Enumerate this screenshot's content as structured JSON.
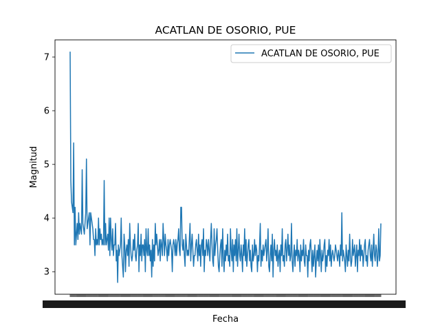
{
  "chart_data": {
    "type": "line",
    "title": "ACATLAN DE OSORIO, PUE",
    "xlabel": "Fecha",
    "ylabel": "Magnitud",
    "ylim": [
      2.58,
      7.32
    ],
    "yticks": [
      3,
      4,
      5,
      6,
      7
    ],
    "grid": false,
    "legend": "top-right",
    "series": [
      {
        "name": "ACATLAN DE OSORIO, PUE",
        "color": "#1f77b4",
        "values": [
          7.1,
          4.7,
          4.3,
          4.2,
          4.1,
          5.4,
          3.5,
          4.2,
          3.5,
          3.7,
          3.9,
          3.6,
          4.1,
          3.7,
          3.9,
          3.8,
          3.7,
          4.9,
          3.9,
          3.8,
          3.7,
          3.9,
          4.1,
          5.1,
          3.8,
          3.9,
          4.0,
          4.1,
          3.5,
          4.1,
          4.0,
          3.9,
          3.8,
          3.6,
          3.6,
          3.3,
          3.8,
          3.5,
          3.6,
          3.5,
          4.0,
          3.5,
          3.8,
          3.6,
          3.7,
          3.5,
          3.6,
          3.5,
          4.7,
          3.5,
          3.9,
          3.5,
          3.6,
          3.7,
          3.4,
          4.0,
          3.3,
          4.0,
          3.6,
          3.4,
          3.8,
          3.3,
          3.5,
          3.5,
          3.9,
          3.2,
          3.4,
          2.8,
          3.5,
          3.3,
          3.4,
          3.5,
          4.0,
          3.3,
          3.1,
          2.9,
          3.7,
          3.5,
          3.0,
          3.4,
          3.5,
          3.3,
          3.6,
          3.1,
          3.9,
          3.5,
          3.3,
          3.2,
          3.3,
          3.6,
          3.4,
          3.7,
          3.3,
          3.2,
          3.4,
          3.5,
          3.9,
          3.0,
          3.5,
          3.3,
          3.7,
          3.2,
          3.5,
          3.5,
          3.3,
          3.6,
          3.0,
          3.8,
          3.4,
          3.3,
          3.8,
          3.3,
          3.5,
          3.2,
          3.4,
          2.9,
          3.6,
          3.1,
          3.5,
          3.2,
          3.9,
          3.5,
          3.7,
          3.5,
          3.3,
          3.4,
          3.6,
          3.2,
          3.6,
          3.5,
          3.3,
          3.9,
          3.6,
          3.3,
          3.7,
          3.5,
          3.4,
          3.2,
          3.6,
          3.3,
          3.5,
          3.6,
          3.5,
          3.4,
          3.0,
          3.5,
          3.6,
          3.5,
          3.3,
          3.6,
          3.3,
          3.5,
          3.6,
          3.8,
          3.4,
          3.3,
          4.2,
          4.2,
          3.5,
          3.4,
          3.6,
          3.3,
          3.1,
          3.7,
          3.5,
          3.3,
          3.4,
          3.3,
          3.6,
          3.9,
          3.2,
          3.5,
          3.7,
          3.4,
          3.1,
          3.3,
          3.3,
          3.5,
          3.6,
          3.4,
          3.2,
          3.7,
          3.3,
          3.5,
          3.1,
          3.5,
          3.6,
          3.3,
          3.8,
          3.0,
          3.4,
          3.3,
          3.6,
          3.5,
          3.3,
          3.6,
          3.4,
          3.2,
          3.6,
          3.9,
          3.5,
          3.2,
          3.1,
          3.8,
          3.3,
          3.5,
          3.6,
          3.8,
          3.4,
          3.1,
          3.0,
          3.3,
          3.5,
          3.6,
          3.1,
          3.8,
          3.3,
          3.0,
          3.4,
          3.2,
          3.5,
          3.3,
          3.7,
          3.2,
          3.3,
          3.1,
          3.8,
          3.4,
          3.2,
          3.6,
          3.0,
          3.5,
          3.3,
          3.6,
          3.2,
          3.8,
          3.1,
          3.4,
          3.7,
          3.3,
          3.2,
          3.5,
          3.3,
          3.0,
          3.5,
          3.3,
          3.8,
          3.2,
          3.6,
          3.1,
          3.3,
          3.5,
          3.6,
          3.2,
          3.4,
          3.1,
          3.0,
          3.5,
          3.2,
          3.3,
          3.6,
          3.3,
          3.5,
          3.4,
          3.0,
          3.3,
          3.2,
          3.5,
          3.9,
          3.1,
          3.4,
          3.2,
          3.5,
          3.3,
          3.4,
          3.5,
          3.6,
          3.2,
          3.4,
          3.8,
          3.1,
          3.0,
          3.3,
          3.5,
          3.2,
          3.7,
          2.9,
          3.4,
          3.6,
          3.3,
          3.4,
          3.2,
          3.5,
          3.1,
          3.3,
          3.4,
          3.0,
          3.5,
          3.3,
          3.8,
          3.2,
          3.3,
          3.1,
          3.5,
          3.6,
          3.2,
          3.4,
          3.7,
          3.3,
          3.5,
          3.2,
          3.3,
          3.9,
          3.2,
          3.0,
          3.3,
          3.5,
          3.1,
          3.4,
          3.3,
          3.6,
          3.2,
          3.4,
          3.3,
          3.0,
          3.5,
          3.2,
          3.4,
          3.3,
          3.6,
          3.2,
          3.1,
          3.5,
          3.3,
          3.3,
          2.9,
          3.4,
          3.2,
          3.5,
          3.6,
          3.3,
          3.0,
          3.4,
          3.1,
          3.3,
          3.5,
          2.9,
          3.2,
          3.4,
          3.2,
          3.5,
          3.1,
          3.6,
          3.3,
          3.0,
          3.4,
          3.2,
          3.3,
          3.5,
          3.6,
          3.0,
          3.3,
          3.1,
          3.4,
          3.3,
          3.6,
          3.2,
          3.5,
          3.1,
          3.3,
          3.4,
          3.3,
          3.2,
          3.3,
          3.5,
          3.4,
          3.3,
          3.2,
          3.4,
          3.3,
          3.1,
          3.5,
          3.3,
          4.1,
          3.2,
          3.4,
          3.3,
          3.2,
          3.0,
          3.5,
          3.3,
          3.1,
          3.4,
          3.2,
          3.7,
          3.3,
          3.1,
          3.2,
          3.6,
          3.3,
          3.4,
          3.5,
          3.1,
          3.3,
          3.5,
          3.0,
          3.4,
          3.3,
          3.6,
          3.2,
          3.5,
          3.3,
          3.4,
          3.1,
          3.3,
          3.5,
          3.6,
          3.2,
          3.3,
          3.1,
          3.4,
          3.5,
          3.6,
          3.3,
          3.2,
          3.5,
          3.1,
          3.4,
          3.7,
          3.3,
          3.2,
          3.5,
          3.4,
          3.1,
          3.3,
          3.8,
          3.2,
          3.3,
          3.9
        ]
      }
    ]
  }
}
